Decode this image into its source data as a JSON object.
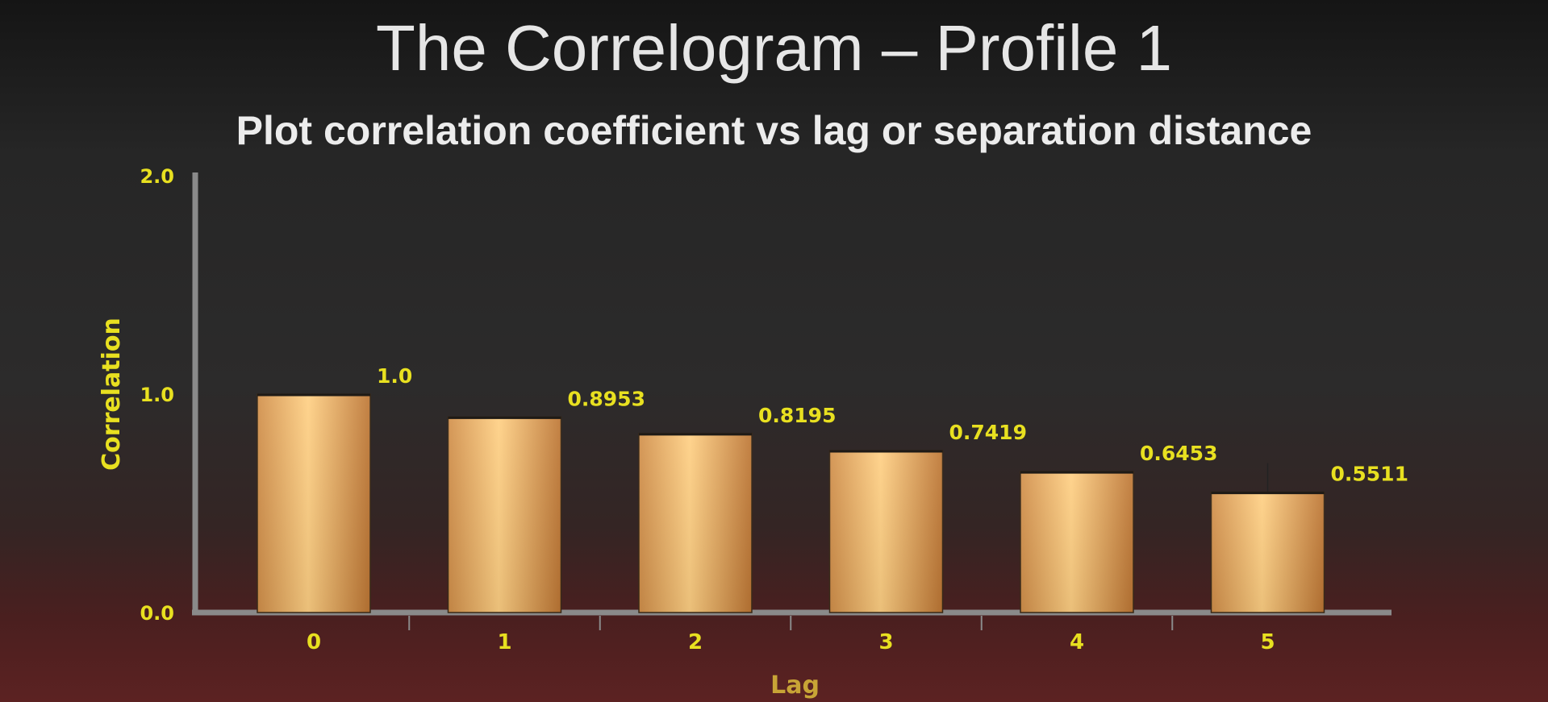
{
  "slide": {
    "title": "The Correlogram – Profile 1",
    "subtitle": "Plot correlation coefficient vs lag or separation distance"
  },
  "chart_data": {
    "type": "bar",
    "categories": [
      "0",
      "1",
      "2",
      "3",
      "4",
      "5"
    ],
    "values": [
      1.0,
      0.8953,
      0.8195,
      0.7419,
      0.6453,
      0.5511
    ],
    "data_labels": [
      "1.0",
      "0.8953",
      "0.8195",
      "0.7419",
      "0.6453",
      "0.5511"
    ],
    "xlabel": "Lag",
    "ylabel": "Correlation",
    "ylim": [
      0,
      2
    ],
    "yticks": [
      "0.0",
      "1.0",
      "2.0"
    ],
    "ytick_values": [
      0,
      1,
      2
    ],
    "grid": false,
    "colors": {
      "label": "#e8e020",
      "xlabel": "#c8a436",
      "axis": "#8a8a8a",
      "bar_edge": "#e9b067",
      "bar_center": "#ffd084",
      "bar_side": "#c07a36"
    }
  }
}
